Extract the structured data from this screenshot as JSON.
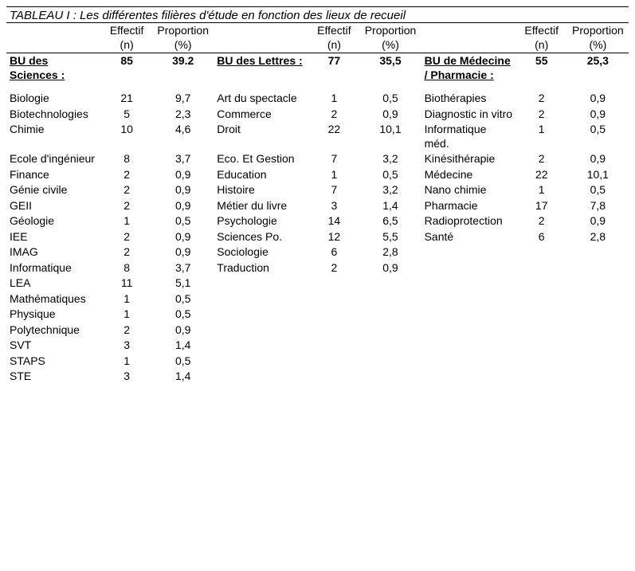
{
  "caption": "TABLEAU I : Les différentes filières d'étude en fonction des lieux de recueil",
  "headers": {
    "n": "Effectif (n)",
    "n2": "Effectif (n)",
    "n3": "Effectif (n)",
    "p": "Proportion (%)",
    "p2": "Proportion (%)",
    "p3": "Proportion (%)"
  },
  "sections": {
    "sci": {
      "title": "BU des Sciences :",
      "n": "85",
      "p": "39.2"
    },
    "let": {
      "title": "BU des Lettres :",
      "n": "77",
      "p": "35,5"
    },
    "med": {
      "title": "BU de Médecine  / Pharmacie :",
      "n": "55",
      "p": "25,3"
    }
  },
  "rows": [
    {
      "sci_l": "Biologie",
      "sci_n": "21",
      "sci_p": "9,7",
      "let_l": "Art du spectacle",
      "let_n": "1",
      "let_p": "0,5",
      "med_l": "Biothérapies",
      "med_n": "2",
      "med_p": "0,9"
    },
    {
      "sci_l": "Biotechnologies",
      "sci_n": "5",
      "sci_p": "2,3",
      "let_l": "Commerce",
      "let_n": "2",
      "let_p": "0,9",
      "med_l": "Diagnostic in vitro",
      "med_n": "2",
      "med_p": "0,9"
    },
    {
      "sci_l": "Chimie",
      "sci_n": "10",
      "sci_p": "4,6",
      "let_l": "Droit",
      "let_n": "22",
      "let_p": "10,1",
      "med_l": "Informatique méd.",
      "med_n": "1",
      "med_p": "0,5"
    },
    {
      "sci_l": "Ecole d'ingénieur",
      "sci_n": "8",
      "sci_p": "3,7",
      "let_l": "Eco. Et Gestion",
      "let_n": "7",
      "let_p": "3,2",
      "med_l": "Kinésithérapie",
      "med_n": "2",
      "med_p": "0,9"
    },
    {
      "sci_l": "Finance",
      "sci_n": "2",
      "sci_p": "0,9",
      "let_l": "Education",
      "let_n": "1",
      "let_p": "0,5",
      "med_l": "Médecine",
      "med_n": "22",
      "med_p": "10,1"
    },
    {
      "sci_l": "Génie civile",
      "sci_n": "2",
      "sci_p": "0,9",
      "let_l": "Histoire",
      "let_n": "7",
      "let_p": "3,2",
      "med_l": "Nano chimie",
      "med_n": "1",
      "med_p": "0,5"
    },
    {
      "sci_l": "GEII",
      "sci_n": "2",
      "sci_p": "0,9",
      "let_l": "Métier du livre",
      "let_n": "3",
      "let_p": "1,4",
      "med_l": "Pharmacie",
      "med_n": "17",
      "med_p": "7,8"
    },
    {
      "sci_l": "Géologie",
      "sci_n": "1",
      "sci_p": "0,5",
      "let_l": "Psychologie",
      "let_n": "14",
      "let_p": "6,5",
      "med_l": "Radioprotection",
      "med_n": "2",
      "med_p": "0,9"
    },
    {
      "sci_l": "IEE",
      "sci_n": "2",
      "sci_p": "0,9",
      "let_l": "Sciences Po.",
      "let_n": "12",
      "let_p": "5,5",
      "med_l": "Santé",
      "med_n": "6",
      "med_p": "2,8"
    },
    {
      "sci_l": "IMAG",
      "sci_n": "2",
      "sci_p": "0,9",
      "let_l": "Sociologie",
      "let_n": "6",
      "let_p": "2,8",
      "med_l": "",
      "med_n": "",
      "med_p": ""
    },
    {
      "sci_l": "Informatique",
      "sci_n": "8",
      "sci_p": "3,7",
      "let_l": "Traduction",
      "let_n": "2",
      "let_p": "0,9",
      "med_l": "",
      "med_n": "",
      "med_p": ""
    },
    {
      "sci_l": "LEA",
      "sci_n": "11",
      "sci_p": "5,1",
      "let_l": "",
      "let_n": "",
      "let_p": "",
      "med_l": "",
      "med_n": "",
      "med_p": ""
    },
    {
      "sci_l": "Mathématiques",
      "sci_n": "1",
      "sci_p": "0,5",
      "let_l": "",
      "let_n": "",
      "let_p": "",
      "med_l": "",
      "med_n": "",
      "med_p": ""
    },
    {
      "sci_l": "Physique",
      "sci_n": "1",
      "sci_p": "0,5",
      "let_l": "",
      "let_n": "",
      "let_p": "",
      "med_l": "",
      "med_n": "",
      "med_p": ""
    },
    {
      "sci_l": "Polytechnique",
      "sci_n": "2",
      "sci_p": "0,9",
      "let_l": "",
      "let_n": "",
      "let_p": "",
      "med_l": "",
      "med_n": "",
      "med_p": ""
    },
    {
      "sci_l": "SVT",
      "sci_n": "3",
      "sci_p": "1,4",
      "let_l": "",
      "let_n": "",
      "let_p": "",
      "med_l": "",
      "med_n": "",
      "med_p": ""
    },
    {
      "sci_l": "STAPS",
      "sci_n": "1",
      "sci_p": "0,5",
      "let_l": "",
      "let_n": "",
      "let_p": "",
      "med_l": "",
      "med_n": "",
      "med_p": ""
    },
    {
      "sci_l": "STE",
      "sci_n": "3",
      "sci_p": "1,4",
      "let_l": "",
      "let_n": "",
      "let_p": "",
      "med_l": "",
      "med_n": "",
      "med_p": ""
    }
  ]
}
